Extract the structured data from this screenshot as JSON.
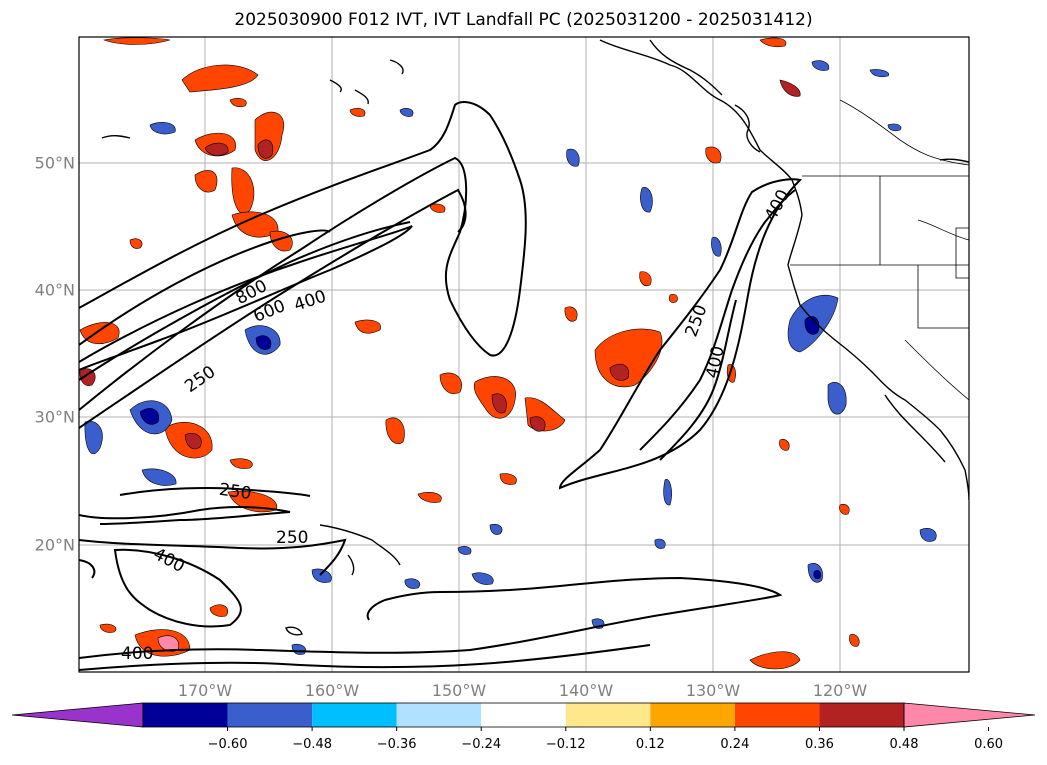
{
  "title": "2025030900 F012 IVT, IVT Landfall PC (2025031200 - 2025031412)",
  "map": {
    "lat_labels": [
      "50°N",
      "40°N",
      "30°N",
      "20°N"
    ],
    "lon_labels": [
      "170°W",
      "160°W",
      "150°W",
      "140°W",
      "130°W",
      "120°W"
    ],
    "contour_labels": [
      "800",
      "600",
      "400",
      "250",
      "400",
      "250",
      "400",
      "250",
      "250",
      "400",
      "400"
    ],
    "gridline_color": "#b0b0b0",
    "coastline_color": "#000000"
  },
  "colorbar": {
    "ticks": [
      "−0.60",
      "−0.48",
      "−0.36",
      "−0.24",
      "−0.12",
      "0.12",
      "0.24",
      "0.36",
      "0.48",
      "0.60"
    ],
    "colors": [
      "#9933cc",
      "#000099",
      "#3a5fcd",
      "#00bfff",
      "#b0e2ff",
      "#ffffff",
      "#ffe88c",
      "#ffa500",
      "#ff4500",
      "#b22222",
      "#ff88aa"
    ]
  }
}
